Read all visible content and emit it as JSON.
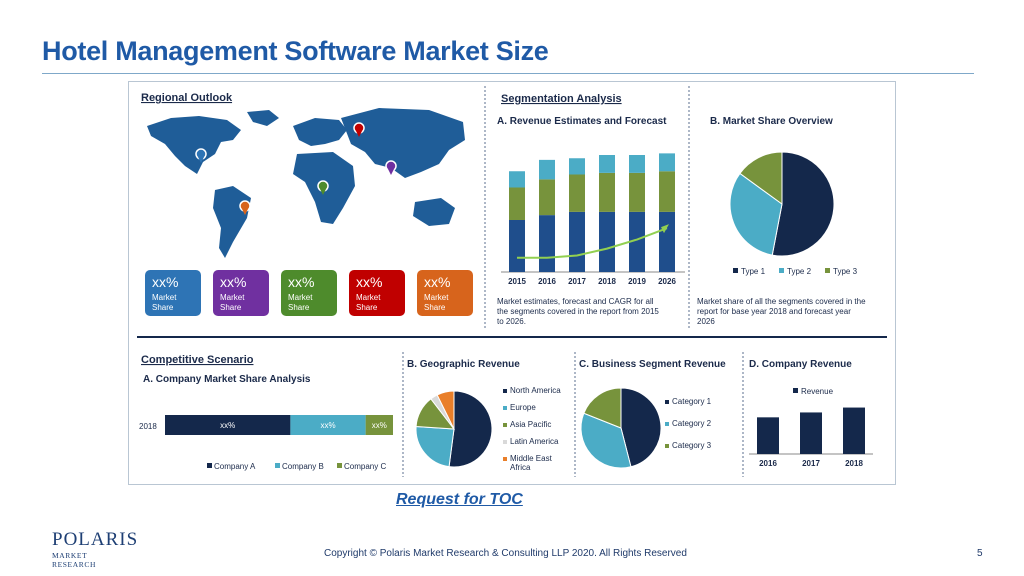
{
  "slide": {
    "title": "Hotel Management Software Market Size",
    "toc_link": "Request for TOC",
    "logo_main": "POLARIS",
    "logo_sub": "MARKET RESEARCH",
    "copyright": "Copyright © Polaris Market Research & Consulting LLP 2020. All Rights Reserved",
    "page_number": "5"
  },
  "colors": {
    "navy": "#14284b",
    "teal": "#4bacc6",
    "green": "#77933c",
    "title_blue": "#1f5aa6",
    "map_blue": "#1f5d98",
    "line_green": "#92d050"
  },
  "regional": {
    "title": "Regional Outlook",
    "cards": [
      {
        "value": "xx%",
        "label1": "Market",
        "label2": "Share",
        "color": "#2e74b5"
      },
      {
        "value": "xx%",
        "label1": "Market",
        "label2": "Share",
        "color": "#7030a0"
      },
      {
        "value": "xx%",
        "label1": "Market",
        "label2": "Share",
        "color": "#4e8b2c"
      },
      {
        "value": "xx%",
        "label1": "Market",
        "label2": "Share",
        "color": "#c00000"
      },
      {
        "value": "xx%",
        "label1": "Market",
        "label2": "Share",
        "color": "#d7641c"
      }
    ],
    "pin_icons": [
      "map-pin-icon"
    ]
  },
  "segmentation": {
    "title": "Segmentation Analysis",
    "revenue_title": "A. Revenue Estimates and Forecast",
    "revenue_caption": [
      "Market estimates, forecast and CAGR for all",
      "the segments covered in the report from 2015",
      "to 2026."
    ],
    "share_title": "B. Market Share Overview",
    "share_caption": [
      "Market share of all the segments covered in the",
      "report for base year 2018 and forecast year",
      "2026"
    ]
  },
  "competitive": {
    "title": "Competitive Scenario",
    "company_title": "A. Company Market Share Analysis",
    "geo_title": "B. Geographic Revenue",
    "biz_title": "C. Business Segment Revenue",
    "rev_title": "D. Company Revenue"
  },
  "chart_data": [
    {
      "type": "bar",
      "title": "A. Revenue Estimates and Forecast",
      "stacked": true,
      "categories": [
        "2015",
        "2016",
        "2017",
        "2018",
        "2019",
        "2026"
      ],
      "series": [
        {
          "values": [
            32,
            35,
            37,
            37,
            37,
            37
          ],
          "color": "#1f4e8c"
        },
        {
          "values": [
            20,
            22,
            23,
            24,
            24,
            25
          ],
          "color": "#77933c"
        },
        {
          "values": [
            10,
            12,
            10,
            11,
            11,
            11
          ],
          "color": "#4bacc6"
        }
      ],
      "trend_line": {
        "values": [
          1,
          1,
          2,
          5,
          9,
          14
        ],
        "color": "#92d050"
      },
      "ylim": [
        0,
        80
      ]
    },
    {
      "type": "pie",
      "title": "B. Market Share Overview",
      "labels": [
        "Type 1",
        "Type 2",
        "Type 3"
      ],
      "values": [
        53,
        32,
        15
      ],
      "colors": [
        "#14284b",
        "#4bacc6",
        "#77933c"
      ]
    },
    {
      "type": "bar",
      "title": "A. Company Market Share Analysis",
      "orientation": "horizontal",
      "stacked": true,
      "categories": [
        "2018"
      ],
      "series": [
        {
          "name": "Company A",
          "values": [
            55
          ],
          "label": "xx%",
          "color": "#14284b"
        },
        {
          "name": "Company B",
          "values": [
            33
          ],
          "label": "xx%",
          "color": "#4bacc6"
        },
        {
          "name": "Company C",
          "values": [
            12
          ],
          "label": "xx%",
          "color": "#77933c"
        }
      ]
    },
    {
      "type": "pie",
      "title": "B. Geographic Revenue",
      "labels": [
        "North America",
        "Europe",
        "Asia Pacific",
        "Latin America",
        "Middle East Africa"
      ],
      "legend_lines": [
        [
          "North America"
        ],
        [
          "Europe"
        ],
        [
          "Asia Pacific"
        ],
        [
          "Latin America"
        ],
        [
          "Middle East",
          "Africa"
        ]
      ],
      "values": [
        50,
        23,
        13,
        3,
        7
      ],
      "colors": [
        "#14284b",
        "#4bacc6",
        "#77933c",
        "#d9d9d9",
        "#e97f2a"
      ]
    },
    {
      "type": "pie",
      "title": "C. Business Segment Revenue",
      "labels": [
        "Category 1",
        "Category 2",
        "Category 3"
      ],
      "values": [
        46,
        35,
        19
      ],
      "colors": [
        "#14284b",
        "#4bacc6",
        "#77933c"
      ]
    },
    {
      "type": "bar",
      "title": "D. Company Revenue",
      "categories": [
        "2016",
        "2017",
        "2018"
      ],
      "series": [
        {
          "name": "Revenue",
          "values": [
            30,
            34,
            38
          ],
          "color": "#14284b"
        }
      ],
      "ylim": [
        0,
        45
      ]
    }
  ]
}
